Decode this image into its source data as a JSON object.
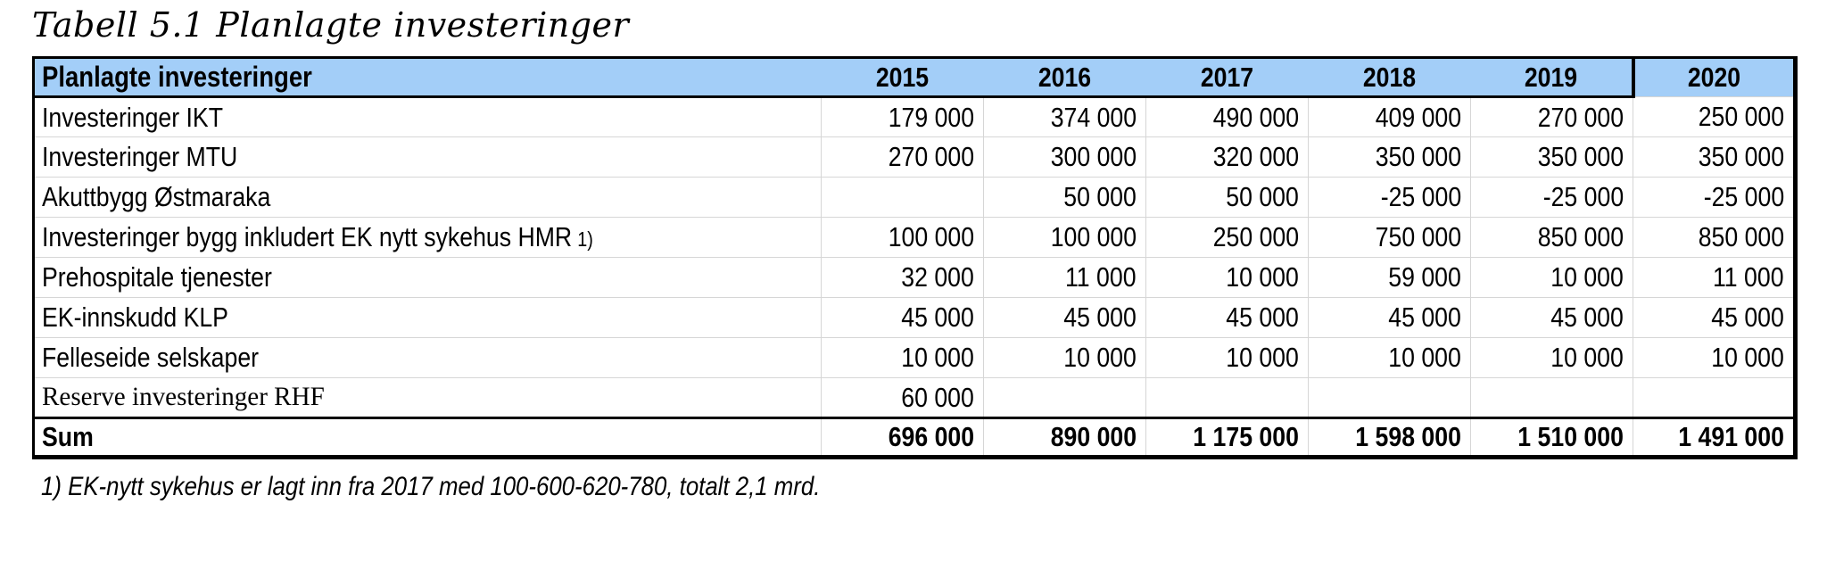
{
  "title": "Tabell 5.1 Planlagte investeringer",
  "table": {
    "header": {
      "label": "Planlagte investeringer",
      "years": [
        "2015",
        "2016",
        "2017",
        "2018",
        "2019",
        "2020"
      ]
    },
    "rows": [
      {
        "label": "Investeringer IKT",
        "values": [
          "179 000",
          "374 000",
          "490 000",
          "409 000",
          "270 000",
          "250 000"
        ]
      },
      {
        "label": "Investeringer MTU",
        "values": [
          "270 000",
          "300 000",
          "320 000",
          "350 000",
          "350 000",
          "350 000"
        ]
      },
      {
        "label": "Akuttbygg Østmaraka",
        "values": [
          "",
          "50 000",
          "50 000",
          "-25 000",
          "-25 000",
          "-25 000"
        ]
      },
      {
        "label": "Investeringer bygg inkludert EK nytt sykehus HMR",
        "footnote_ref": "1)",
        "values": [
          "100 000",
          "100 000",
          "250 000",
          "750 000",
          "850 000",
          "850 000"
        ]
      },
      {
        "label": "Prehospitale tjenester",
        "values": [
          "32 000",
          "11 000",
          "10 000",
          "59 000",
          "10 000",
          "11 000"
        ]
      },
      {
        "label": "EK-innskudd KLP",
        "values": [
          "45 000",
          "45 000",
          "45 000",
          "45 000",
          "45 000",
          "45 000"
        ]
      },
      {
        "label": "Felleseide selskaper",
        "values": [
          "10 000",
          "10 000",
          "10 000",
          "10 000",
          "10 000",
          "10 000"
        ]
      },
      {
        "label": "Reserve investeringer RHF",
        "values": [
          "60 000",
          "",
          "",
          "",
          "",
          ""
        ]
      }
    ],
    "sum_row": {
      "label": "Sum",
      "values": [
        "696 000",
        "890 000",
        "1 175 000",
        "1 598 000",
        "1 510 000",
        "1 491 000"
      ]
    }
  },
  "footnote": "1) EK-nytt sykehus er lagt inn fra 2017 med 100-600-620-780, totalt 2,1 mrd.",
  "colors": {
    "header_bg": "#A3CEF8",
    "grid_line": "#D6D6D6",
    "border": "#000000"
  }
}
